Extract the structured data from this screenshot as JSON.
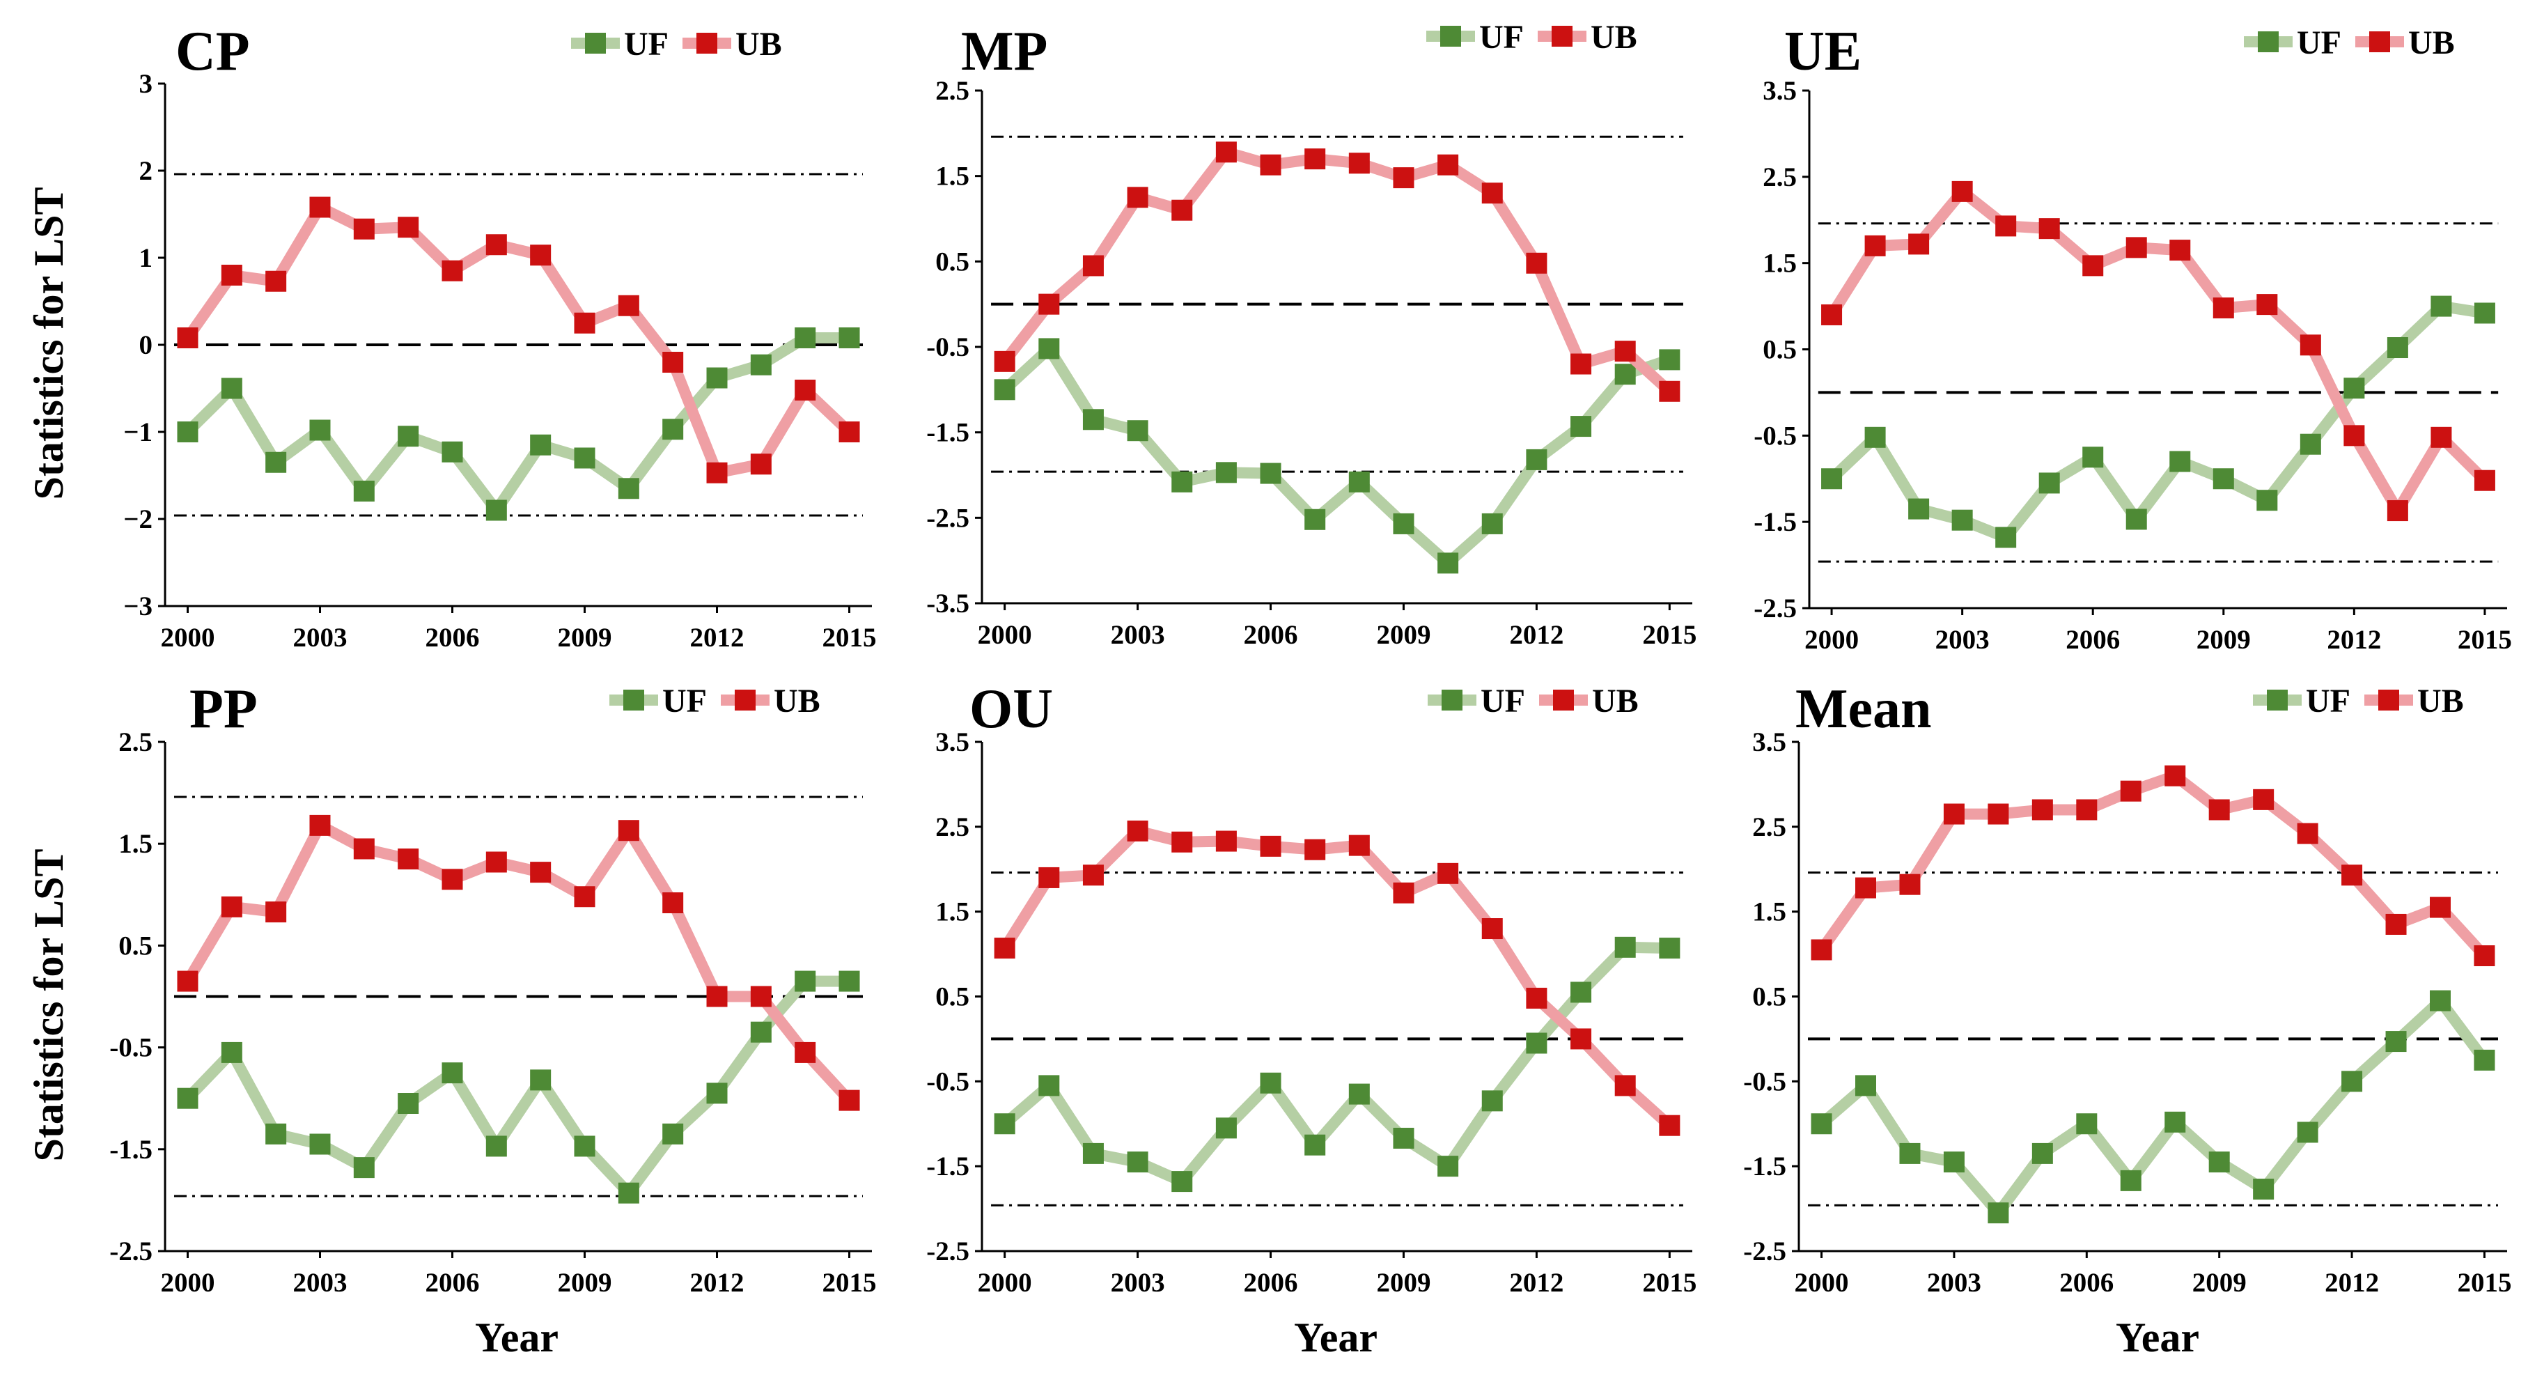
{
  "colors": {
    "uf_line": "#b5cfa4",
    "uf_marker": "#4e8a35",
    "ub_line": "#ef9fa4",
    "ub_marker": "#cc1111"
  },
  "axes_labels": {
    "ylabel": "Statistics for LST",
    "xlabel": "Year"
  },
  "legend": {
    "uf": "UF",
    "ub": "UB"
  },
  "chart_data": [
    {
      "type": "line",
      "title": "CP",
      "x": [
        2000,
        2001,
        2002,
        2003,
        2004,
        2005,
        2006,
        2007,
        2008,
        2009,
        2010,
        2011,
        2012,
        2013,
        2014,
        2015
      ],
      "xticks": [
        2000,
        2003,
        2006,
        2009,
        2012,
        2015
      ],
      "ylim": [
        -3,
        3
      ],
      "yticks": [
        -3,
        -2,
        -1,
        0,
        1,
        2,
        3
      ],
      "ytick_labels": [
        "−3",
        "−2",
        "−1",
        "0",
        "1",
        "2",
        "3"
      ],
      "reference_lines": {
        "zero": 0,
        "upper": 1.96,
        "lower": -1.96
      },
      "series": [
        {
          "name": "UF",
          "values": [
            -1.0,
            -0.5,
            -1.35,
            -0.98,
            -1.68,
            -1.05,
            -1.23,
            -1.9,
            -1.15,
            -1.3,
            -1.65,
            -0.97,
            -0.38,
            -0.23,
            0.08,
            0.08
          ]
        },
        {
          "name": "UB",
          "values": [
            0.08,
            0.8,
            0.73,
            1.58,
            1.33,
            1.35,
            0.85,
            1.15,
            1.03,
            0.25,
            0.45,
            -0.2,
            -1.47,
            -1.37,
            -0.52,
            -1.0
          ]
        }
      ]
    },
    {
      "type": "line",
      "title": "MP",
      "x": [
        2000,
        2001,
        2002,
        2003,
        2004,
        2005,
        2006,
        2007,
        2008,
        2009,
        2010,
        2011,
        2012,
        2013,
        2014,
        2015
      ],
      "xticks": [
        2000,
        2003,
        2006,
        2009,
        2012,
        2015
      ],
      "ylim": [
        -3.5,
        2.5
      ],
      "yticks": [
        -3.5,
        -2.5,
        -1.5,
        -0.5,
        0.5,
        1.5,
        2.5
      ],
      "ytick_labels": [
        "-3.5",
        "-2.5",
        "-1.5",
        "-0.5",
        "0.5",
        "1.5",
        "2.5"
      ],
      "reference_lines": {
        "zero": 0,
        "upper": 1.96,
        "lower": -1.96
      },
      "series": [
        {
          "name": "UF",
          "values": [
            -1.0,
            -0.52,
            -1.35,
            -1.48,
            -2.08,
            -1.97,
            -1.98,
            -2.52,
            -2.08,
            -2.57,
            -3.03,
            -2.57,
            -1.82,
            -1.43,
            -0.82,
            -0.65
          ]
        },
        {
          "name": "UB",
          "values": [
            -0.67,
            0.0,
            0.45,
            1.25,
            1.1,
            1.78,
            1.63,
            1.7,
            1.65,
            1.48,
            1.63,
            1.3,
            0.48,
            -0.7,
            -0.55,
            -1.02
          ]
        }
      ]
    },
    {
      "type": "line",
      "title": "UE",
      "x": [
        2000,
        2001,
        2002,
        2003,
        2004,
        2005,
        2006,
        2007,
        2008,
        2009,
        2010,
        2011,
        2012,
        2013,
        2014,
        2015
      ],
      "xticks": [
        2000,
        2003,
        2006,
        2009,
        2012,
        2015
      ],
      "ylim": [
        -2.5,
        3.5
      ],
      "yticks": [
        -2.5,
        -1.5,
        -0.5,
        0.5,
        1.5,
        2.5,
        3.5
      ],
      "ytick_labels": [
        "-2.5",
        "-1.5",
        "-0.5",
        "0.5",
        "1.5",
        "2.5",
        "3.5"
      ],
      "reference_lines": {
        "zero": 0,
        "upper": 1.96,
        "lower": -1.96
      },
      "series": [
        {
          "name": "UF",
          "values": [
            -1.0,
            -0.52,
            -1.35,
            -1.48,
            -1.68,
            -1.05,
            -0.75,
            -1.47,
            -0.8,
            -1.0,
            -1.25,
            -0.6,
            0.05,
            0.52,
            1.0,
            0.92
          ]
        },
        {
          "name": "UB",
          "values": [
            0.9,
            1.7,
            1.72,
            2.33,
            1.93,
            1.9,
            1.47,
            1.68,
            1.65,
            0.98,
            1.02,
            0.55,
            -0.5,
            -1.37,
            -0.52,
            -1.02
          ]
        }
      ]
    },
    {
      "type": "line",
      "title": "PP",
      "x": [
        2000,
        2001,
        2002,
        2003,
        2004,
        2005,
        2006,
        2007,
        2008,
        2009,
        2010,
        2011,
        2012,
        2013,
        2014,
        2015
      ],
      "xticks": [
        2000,
        2003,
        2006,
        2009,
        2012,
        2015
      ],
      "ylim": [
        -2.5,
        2.5
      ],
      "yticks": [
        -2.5,
        -1.5,
        -0.5,
        0.5,
        1.5,
        2.5
      ],
      "ytick_labels": [
        "-2.5",
        "-1.5",
        "-0.5",
        "0.5",
        "1.5",
        "2.5"
      ],
      "reference_lines": {
        "zero": 0,
        "upper": 1.96,
        "lower": -1.96
      },
      "series": [
        {
          "name": "UF",
          "values": [
            -1.0,
            -0.55,
            -1.35,
            -1.45,
            -1.68,
            -1.05,
            -0.75,
            -1.47,
            -0.82,
            -1.47,
            -1.93,
            -1.35,
            -0.95,
            -0.35,
            0.15,
            0.15
          ]
        },
        {
          "name": "UB",
          "values": [
            0.15,
            0.88,
            0.83,
            1.68,
            1.45,
            1.35,
            1.15,
            1.32,
            1.22,
            0.98,
            1.63,
            0.92,
            0.0,
            0.0,
            -0.55,
            -1.02
          ]
        }
      ]
    },
    {
      "type": "line",
      "title": "OU",
      "x": [
        2000,
        2001,
        2002,
        2003,
        2004,
        2005,
        2006,
        2007,
        2008,
        2009,
        2010,
        2011,
        2012,
        2013,
        2014,
        2015
      ],
      "xticks": [
        2000,
        2003,
        2006,
        2009,
        2012,
        2015
      ],
      "ylim": [
        -2.5,
        3.5
      ],
      "yticks": [
        -2.5,
        -1.5,
        -0.5,
        0.5,
        1.5,
        2.5,
        3.5
      ],
      "ytick_labels": [
        "-2.5",
        "-1.5",
        "-0.5",
        "0.5",
        "1.5",
        "2.5",
        "3.5"
      ],
      "reference_lines": {
        "zero": 0,
        "upper": 1.96,
        "lower": -1.96
      },
      "series": [
        {
          "name": "UF",
          "values": [
            -1.0,
            -0.55,
            -1.35,
            -1.45,
            -1.68,
            -1.05,
            -0.52,
            -1.25,
            -0.65,
            -1.17,
            -1.5,
            -0.73,
            -0.05,
            0.55,
            1.08,
            1.07
          ]
        },
        {
          "name": "UB",
          "values": [
            1.07,
            1.9,
            1.93,
            2.45,
            2.32,
            2.33,
            2.27,
            2.23,
            2.28,
            1.72,
            1.95,
            1.3,
            0.48,
            0.0,
            -0.55,
            -1.02
          ]
        }
      ]
    },
    {
      "type": "line",
      "title": "Mean",
      "x": [
        2000,
        2001,
        2002,
        2003,
        2004,
        2005,
        2006,
        2007,
        2008,
        2009,
        2010,
        2011,
        2012,
        2013,
        2014,
        2015
      ],
      "xticks": [
        2000,
        2003,
        2006,
        2009,
        2012,
        2015
      ],
      "ylim": [
        -2.5,
        3.5
      ],
      "yticks": [
        -2.5,
        -1.5,
        -0.5,
        0.5,
        1.5,
        2.5,
        3.5
      ],
      "ytick_labels": [
        "-2.5",
        "-1.5",
        "-0.5",
        "0.5",
        "1.5",
        "2.5",
        "3.5"
      ],
      "reference_lines": {
        "zero": 0,
        "upper": 1.96,
        "lower": -1.96
      },
      "series": [
        {
          "name": "UF",
          "values": [
            -1.0,
            -0.55,
            -1.35,
            -1.45,
            -2.05,
            -1.35,
            -1.0,
            -1.67,
            -0.98,
            -1.45,
            -1.77,
            -1.1,
            -0.5,
            -0.03,
            0.45,
            -0.25
          ]
        },
        {
          "name": "UB",
          "values": [
            1.05,
            1.78,
            1.82,
            2.65,
            2.65,
            2.7,
            2.7,
            2.92,
            3.1,
            2.7,
            2.82,
            2.42,
            1.93,
            1.35,
            1.55,
            0.98
          ]
        }
      ]
    }
  ]
}
